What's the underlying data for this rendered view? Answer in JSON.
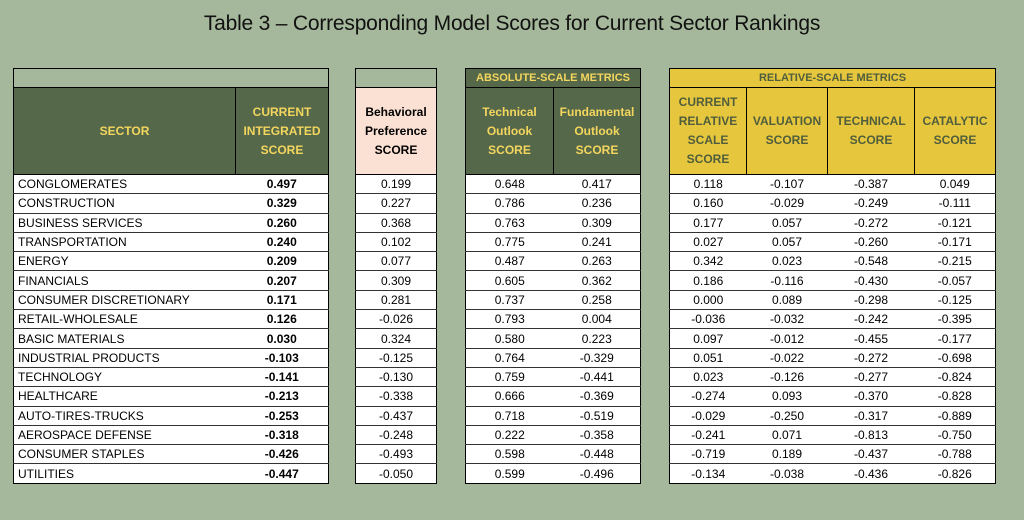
{
  "title": "Table 3 – Corresponding Model Scores for Current Sector Rankings",
  "colors": {
    "dark_header": "#56684a",
    "header_text": "#f3d65e",
    "pink_header": "#fbe1d3",
    "gold_header": "#e6c63d",
    "background": "#a5b89b"
  },
  "headers": {
    "sector": "SECTOR",
    "current_integrated": [
      "CURRENT",
      "INTEGRATED",
      "SCORE"
    ],
    "behavioral": [
      "Behavioral",
      "Preference",
      "SCORE"
    ],
    "absolute_group": "ABSOLUTE-SCALE METRICS",
    "technical_outlook": [
      "Technical",
      "Outlook",
      "SCORE"
    ],
    "fundamental_outlook": [
      "Fundamental",
      "Outlook",
      "SCORE"
    ],
    "relative_group": "RELATIVE-SCALE METRICS",
    "current_relative": [
      "CURRENT",
      "RELATIVE",
      "SCALE",
      "SCORE"
    ],
    "valuation": [
      "VALUATION",
      "SCORE"
    ],
    "technical": [
      "TECHNICAL",
      "SCORE"
    ],
    "catalytic": [
      "CATALYTIC",
      "SCORE"
    ]
  },
  "rows": [
    {
      "sector": "CONGLOMERATES",
      "integrated": "0.497",
      "behavioral": "0.199",
      "tech_outlook": "0.648",
      "fund_outlook": "0.417",
      "relative": "0.118",
      "valuation": "-0.107",
      "technical": "-0.387",
      "catalytic": "0.049"
    },
    {
      "sector": "CONSTRUCTION",
      "integrated": "0.329",
      "behavioral": "0.227",
      "tech_outlook": "0.786",
      "fund_outlook": "0.236",
      "relative": "0.160",
      "valuation": "-0.029",
      "technical": "-0.249",
      "catalytic": "-0.111"
    },
    {
      "sector": "BUSINESS SERVICES",
      "integrated": "0.260",
      "behavioral": "0.368",
      "tech_outlook": "0.763",
      "fund_outlook": "0.309",
      "relative": "0.177",
      "valuation": "0.057",
      "technical": "-0.272",
      "catalytic": "-0.121"
    },
    {
      "sector": "TRANSPORTATION",
      "integrated": "0.240",
      "behavioral": "0.102",
      "tech_outlook": "0.775",
      "fund_outlook": "0.241",
      "relative": "0.027",
      "valuation": "0.057",
      "technical": "-0.260",
      "catalytic": "-0.171"
    },
    {
      "sector": "ENERGY",
      "integrated": "0.209",
      "behavioral": "0.077",
      "tech_outlook": "0.487",
      "fund_outlook": "0.263",
      "relative": "0.342",
      "valuation": "0.023",
      "technical": "-0.548",
      "catalytic": "-0.215"
    },
    {
      "sector": "FINANCIALS",
      "integrated": "0.207",
      "behavioral": "0.309",
      "tech_outlook": "0.605",
      "fund_outlook": "0.362",
      "relative": "0.186",
      "valuation": "-0.116",
      "technical": "-0.430",
      "catalytic": "-0.057"
    },
    {
      "sector": "CONSUMER DISCRETIONARY",
      "integrated": "0.171",
      "behavioral": "0.281",
      "tech_outlook": "0.737",
      "fund_outlook": "0.258",
      "relative": "0.000",
      "valuation": "0.089",
      "technical": "-0.298",
      "catalytic": "-0.125"
    },
    {
      "sector": "RETAIL-WHOLESALE",
      "integrated": "0.126",
      "behavioral": "-0.026",
      "tech_outlook": "0.793",
      "fund_outlook": "0.004",
      "relative": "-0.036",
      "valuation": "-0.032",
      "technical": "-0.242",
      "catalytic": "-0.395"
    },
    {
      "sector": "BASIC MATERIALS",
      "integrated": "0.030",
      "behavioral": "0.324",
      "tech_outlook": "0.580",
      "fund_outlook": "0.223",
      "relative": "0.097",
      "valuation": "-0.012",
      "technical": "-0.455",
      "catalytic": "-0.177"
    },
    {
      "sector": "INDUSTRIAL PRODUCTS",
      "integrated": "-0.103",
      "behavioral": "-0.125",
      "tech_outlook": "0.764",
      "fund_outlook": "-0.329",
      "relative": "0.051",
      "valuation": "-0.022",
      "technical": "-0.272",
      "catalytic": "-0.698"
    },
    {
      "sector": "TECHNOLOGY",
      "integrated": "-0.141",
      "behavioral": "-0.130",
      "tech_outlook": "0.759",
      "fund_outlook": "-0.441",
      "relative": "0.023",
      "valuation": "-0.126",
      "technical": "-0.277",
      "catalytic": "-0.824"
    },
    {
      "sector": "HEALTHCARE",
      "integrated": "-0.213",
      "behavioral": "-0.338",
      "tech_outlook": "0.666",
      "fund_outlook": "-0.369",
      "relative": "-0.274",
      "valuation": "0.093",
      "technical": "-0.370",
      "catalytic": "-0.828"
    },
    {
      "sector": "AUTO-TIRES-TRUCKS",
      "integrated": "-0.253",
      "behavioral": "-0.437",
      "tech_outlook": "0.718",
      "fund_outlook": "-0.519",
      "relative": "-0.029",
      "valuation": "-0.250",
      "technical": "-0.317",
      "catalytic": "-0.889"
    },
    {
      "sector": "AEROSPACE DEFENSE",
      "integrated": "-0.318",
      "behavioral": "-0.248",
      "tech_outlook": "0.222",
      "fund_outlook": "-0.358",
      "relative": "-0.241",
      "valuation": "0.071",
      "technical": "-0.813",
      "catalytic": "-0.750"
    },
    {
      "sector": "CONSUMER STAPLES",
      "integrated": "-0.426",
      "behavioral": "-0.493",
      "tech_outlook": "0.598",
      "fund_outlook": "-0.448",
      "relative": "-0.719",
      "valuation": "0.189",
      "technical": "-0.437",
      "catalytic": "-0.788"
    },
    {
      "sector": "UTILITIES",
      "integrated": "-0.447",
      "behavioral": "-0.050",
      "tech_outlook": "0.599",
      "fund_outlook": "-0.496",
      "relative": "-0.134",
      "valuation": "-0.038",
      "technical": "-0.436",
      "catalytic": "-0.826"
    }
  ]
}
